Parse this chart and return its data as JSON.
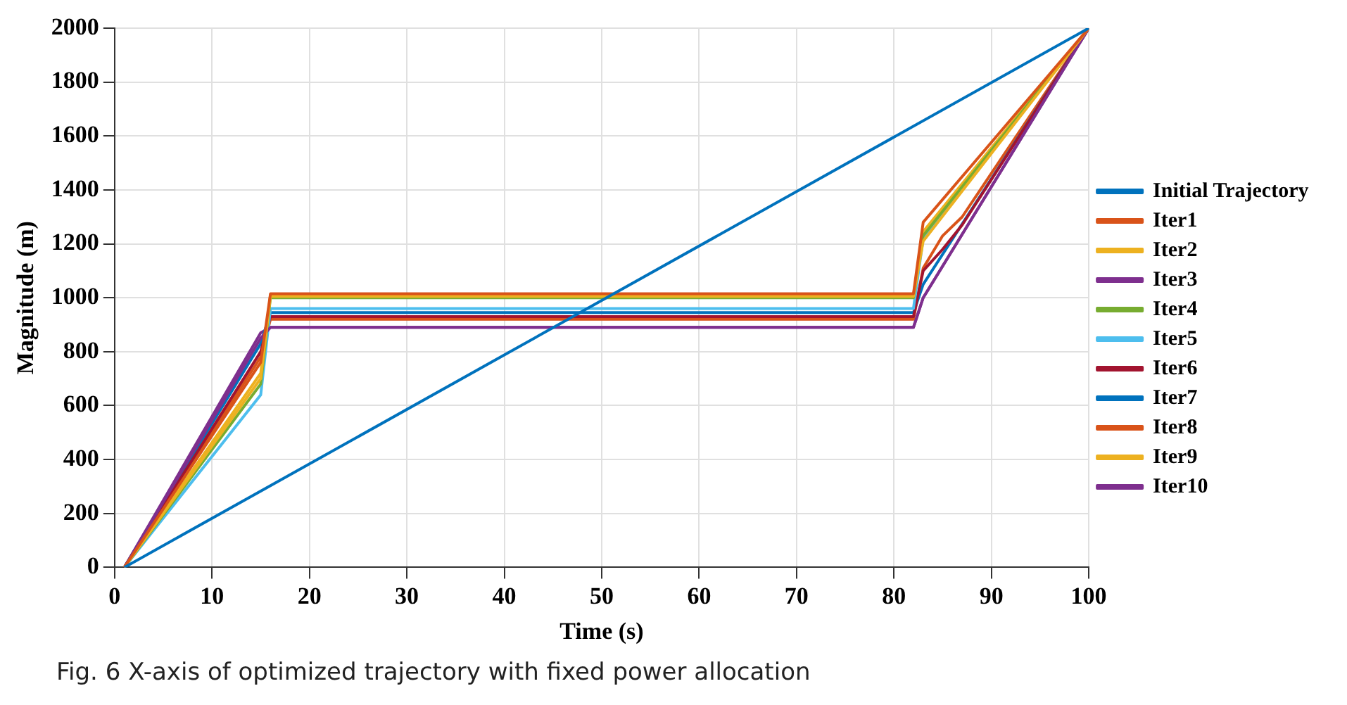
{
  "chart_data": {
    "type": "line",
    "xlabel": "Time (s)",
    "ylabel": "Magnitude (m)",
    "xlim": [
      0,
      100
    ],
    "xticks": [
      0,
      10,
      20,
      30,
      40,
      50,
      60,
      70,
      80,
      90,
      100
    ],
    "ylim": [
      0,
      2000
    ],
    "yticks": [
      0,
      200,
      400,
      600,
      800,
      1000,
      1200,
      1400,
      1600,
      1800,
      2000
    ],
    "grid": true,
    "legend": "right",
    "marker": "none",
    "line_style": "solid",
    "annotations": [
      "Fig. 6  X-axis of optimized trajectory with fixed power allocation"
    ],
    "series": [
      {
        "name": "Initial Trajectory",
        "color": "#0072bd",
        "x": [
          1,
          100
        ],
        "values": [
          0,
          2000
        ]
      },
      {
        "name": "Iter1",
        "color": "#d95319",
        "x": [
          1,
          15,
          16,
          82,
          83,
          100
        ],
        "values": [
          0,
          760,
          1015,
          1015,
          1280,
          2000
        ]
      },
      {
        "name": "Iter2",
        "color": "#edb120",
        "x": [
          1,
          15,
          16,
          82,
          83,
          100
        ],
        "values": [
          0,
          700,
          1005,
          1005,
          1210,
          2000
        ]
      },
      {
        "name": "Iter3",
        "color": "#7e2f8e",
        "x": [
          1,
          15,
          16,
          82,
          83,
          100
        ],
        "values": [
          0,
          850,
          890,
          890,
          1000,
          2000
        ]
      },
      {
        "name": "Iter4",
        "color": "#77ac30",
        "x": [
          1,
          15,
          16,
          82,
          83,
          100
        ],
        "values": [
          0,
          680,
          1000,
          1000,
          1230,
          2000
        ]
      },
      {
        "name": "Iter5",
        "color": "#4dbeee",
        "x": [
          1,
          15,
          16,
          82,
          83,
          100
        ],
        "values": [
          0,
          640,
          960,
          960,
          1220,
          2000
        ]
      },
      {
        "name": "Iter6",
        "color": "#a2142f",
        "x": [
          1,
          15,
          16,
          82,
          83,
          85,
          87,
          100
        ],
        "values": [
          0,
          800,
          930,
          930,
          1100,
          1180,
          1270,
          2000
        ]
      },
      {
        "name": "Iter7",
        "color": "#0072bd",
        "x": [
          1,
          15,
          16,
          82,
          83,
          100
        ],
        "values": [
          0,
          830,
          945,
          945,
          1050,
          2000
        ]
      },
      {
        "name": "Iter8",
        "color": "#d95319",
        "x": [
          1,
          15,
          16,
          82,
          83,
          85,
          87,
          100
        ],
        "values": [
          0,
          780,
          920,
          920,
          1110,
          1230,
          1300,
          2000
        ]
      },
      {
        "name": "Iter9",
        "color": "#edb120",
        "x": [
          1,
          15,
          16,
          82,
          83,
          100
        ],
        "values": [
          0,
          720,
          1010,
          1010,
          1245,
          2000
        ]
      },
      {
        "name": "Iter10",
        "color": "#7e2f8e",
        "x": [
          1,
          15,
          16,
          82,
          83,
          100
        ],
        "values": [
          0,
          870,
          890,
          890,
          1000,
          2000
        ]
      }
    ]
  }
}
